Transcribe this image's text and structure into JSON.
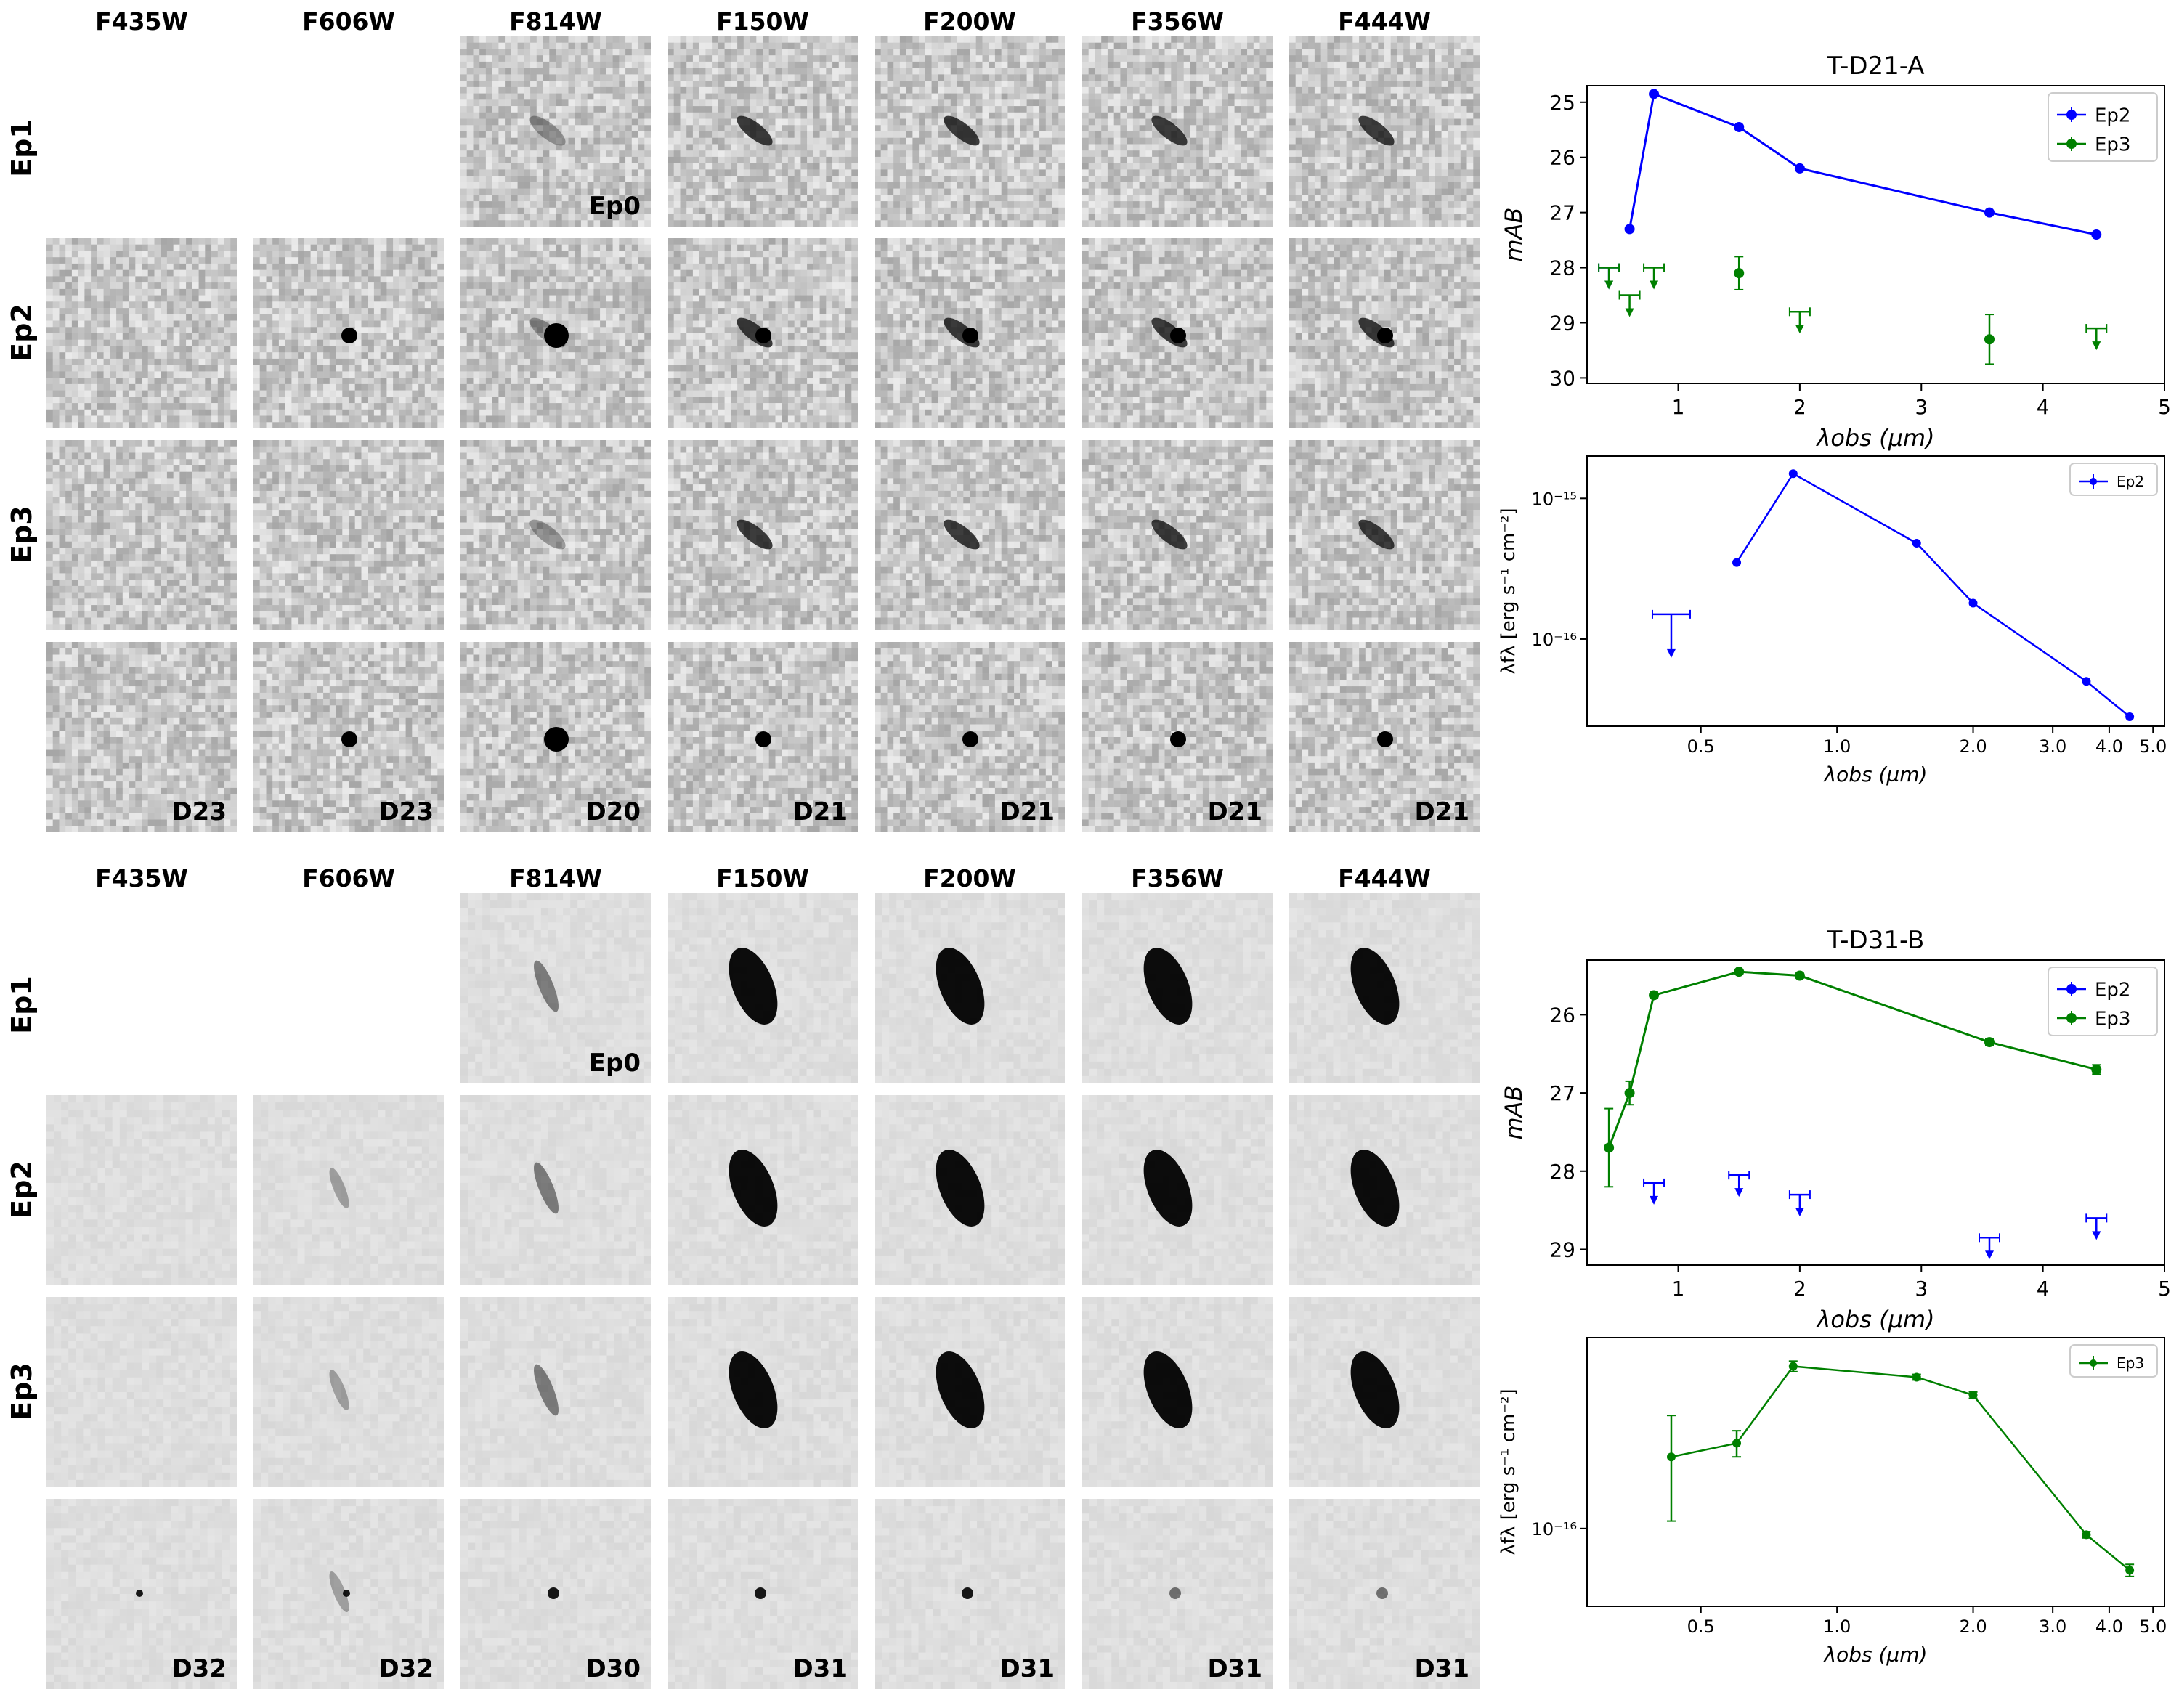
{
  "panels": [
    {
      "filters": [
        "F435W",
        "F606W",
        "F814W",
        "F150W",
        "F200W",
        "F356W",
        "F444W"
      ],
      "epochs": [
        "Ep1",
        "Ep2",
        "Ep3"
      ],
      "ep0_tag": "Ep0",
      "diff_tags": [
        "D23",
        "D23",
        "D20",
        "D21",
        "D21",
        "D21",
        "D21"
      ],
      "style": "noisy"
    },
    {
      "filters": [
        "F435W",
        "F606W",
        "F814W",
        "F150W",
        "F200W",
        "F356W",
        "F444W"
      ],
      "epochs": [
        "Ep1",
        "Ep2",
        "Ep3"
      ],
      "ep0_tag": "Ep0",
      "diff_tags": [
        "D32",
        "D32",
        "D30",
        "D31",
        "D31",
        "D31",
        "D31"
      ],
      "style": "smooth"
    }
  ],
  "chart_data": [
    {
      "type": "line",
      "title": "T-D21-A",
      "xlabel": "λobs (µm)",
      "ylabel": "mAB",
      "xlim": [
        0.25,
        5
      ],
      "ylim": [
        24.7,
        30.1
      ],
      "y_inverted": true,
      "xticks": [
        1,
        2,
        3,
        4,
        5
      ],
      "yticks": [
        25,
        26,
        27,
        28,
        29,
        30
      ],
      "legend": "top-right",
      "series": [
        {
          "name": "Ep2",
          "color": "#0000ff",
          "points": [
            [
              0.6,
              27.3
            ],
            [
              0.8,
              24.85
            ],
            [
              1.5,
              25.45
            ],
            [
              2.0,
              26.2
            ],
            [
              3.56,
              27.0
            ],
            [
              4.44,
              27.4
            ]
          ],
          "upper_limits": [
            [
              0.43,
              28.0
            ]
          ]
        },
        {
          "name": "Ep3",
          "color": "#008000",
          "points": [
            [
              1.5,
              28.1
            ],
            [
              3.56,
              29.3
            ]
          ],
          "point_errors": [
            0.3,
            0.45
          ],
          "upper_limits": [
            [
              0.43,
              28.0
            ],
            [
              0.6,
              28.5
            ],
            [
              0.8,
              28.0
            ],
            [
              2.0,
              28.8
            ],
            [
              4.44,
              29.1
            ]
          ]
        }
      ]
    },
    {
      "type": "line",
      "log_scale": true,
      "xlabel": "λobs (µm)",
      "ylabel": "λfλ [erg s⁻¹ cm⁻²]",
      "xticks": [
        0.5,
        1.0,
        2.0,
        3.0,
        4.0,
        5.0
      ],
      "yticks": [
        "10⁻¹⁶",
        "10⁻¹⁵"
      ],
      "legend": "top-right",
      "series": [
        {
          "name": "Ep2",
          "color": "#0000ff",
          "points": [
            [
              0.6,
              3.5e-16
            ],
            [
              0.8,
              1.5e-15
            ],
            [
              1.5,
              4.8e-16
            ],
            [
              2.0,
              1.8e-16
            ],
            [
              3.56,
              5e-17
            ],
            [
              4.44,
              2.8e-17
            ]
          ],
          "upper_limits": [
            [
              0.43,
              1.5e-16
            ]
          ]
        }
      ]
    },
    {
      "type": "line",
      "title": "T-D31-B",
      "xlabel": "λobs (µm)",
      "ylabel": "mAB",
      "xlim": [
        0.25,
        5
      ],
      "ylim": [
        25.3,
        29.2
      ],
      "y_inverted": true,
      "xticks": [
        1,
        2,
        3,
        4,
        5
      ],
      "yticks": [
        26,
        27,
        28,
        29
      ],
      "legend": "top-right",
      "series": [
        {
          "name": "Ep2",
          "color": "#0000ff",
          "points": [],
          "upper_limits": [
            [
              0.8,
              28.15
            ],
            [
              1.5,
              28.05
            ],
            [
              2.0,
              28.3
            ],
            [
              3.56,
              28.85
            ],
            [
              4.44,
              28.6
            ]
          ]
        },
        {
          "name": "Ep3",
          "color": "#008000",
          "points": [
            [
              0.43,
              27.7
            ],
            [
              0.6,
              27.0
            ],
            [
              0.8,
              25.75
            ],
            [
              1.5,
              25.45
            ],
            [
              2.0,
              25.5
            ],
            [
              3.56,
              26.35
            ],
            [
              4.44,
              26.7
            ]
          ],
          "point_errors": [
            0.5,
            0.15,
            0.04,
            0.03,
            0.03,
            0.04,
            0.06
          ]
        }
      ]
    },
    {
      "type": "line",
      "log_scale": true,
      "xlabel": "λobs (µm)",
      "ylabel": "λfλ [erg s⁻¹ cm⁻²]",
      "xticks": [
        0.5,
        1.0,
        2.0,
        3.0,
        4.0,
        5.0
      ],
      "yticks": [
        "10⁻¹⁶"
      ],
      "legend": "top-right",
      "series": [
        {
          "name": "Ep3",
          "color": "#008000",
          "points": [
            [
              0.43,
              1.6e-16
            ],
            [
              0.6,
              1.75e-16
            ],
            [
              0.8,
              2.9e-16
            ],
            [
              1.5,
              2.7e-16
            ],
            [
              2.0,
              2.4e-16
            ],
            [
              3.56,
              9.6e-17
            ],
            [
              4.44,
              7.6e-17
            ]
          ],
          "point_errors_up": [
            5e-17,
            1.5e-17,
            1e-17,
            5e-18,
            5e-18,
            2e-18,
            3e-18
          ],
          "point_errors_down": [
            5.5e-17,
            1.5e-17,
            1e-17,
            5e-18,
            5e-18,
            2e-18,
            3e-18
          ]
        }
      ]
    }
  ]
}
